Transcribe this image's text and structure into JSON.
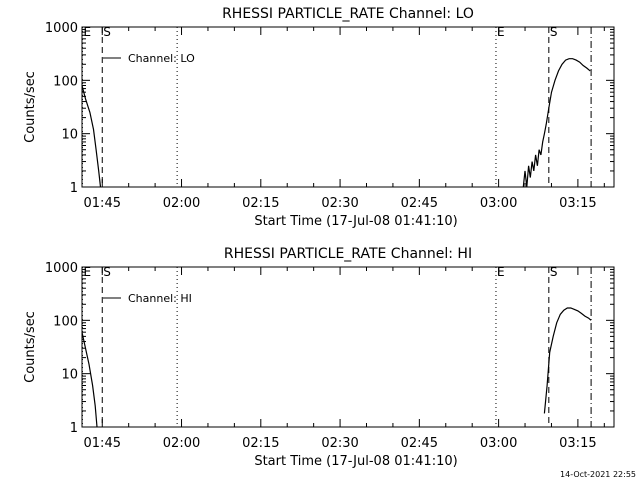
{
  "footer_timestamp": "14-Oct-2021 22:55",
  "time_axis": {
    "ticks": [
      "01:45",
      "02:00",
      "02:15",
      "02:30",
      "02:45",
      "03:00",
      "03:15"
    ],
    "xlim": [
      "01:41:10",
      "03:21:50"
    ]
  },
  "chart_data": [
    {
      "type": "line",
      "title": "RHESSI PARTICLE_RATE Channel: LO",
      "xlabel": "Start Time (17-Jul-08 01:41:10)",
      "ylabel": "Counts/sec",
      "yscale": "log",
      "ylim": [
        1,
        1000
      ],
      "yticks": [
        "1",
        "10",
        "100",
        "1000"
      ],
      "legend": {
        "label": "Channel: LO",
        "placement": "top-left"
      },
      "markers": [
        {
          "label": "E",
          "time": "01:41:15",
          "style": "dotted"
        },
        {
          "label": "S",
          "time": "01:45:00",
          "style": "dashed"
        },
        {
          "label": "",
          "time": "01:59:10",
          "style": "dotted"
        },
        {
          "label": "E",
          "time": "02:59:30",
          "style": "dotted"
        },
        {
          "label": "S",
          "time": "03:09:30",
          "style": "dashed"
        },
        {
          "label": "",
          "time": "03:17:30",
          "style": "dash-dot"
        }
      ],
      "series": [
        {
          "name": "Channel: LO",
          "segments": [
            [
              {
                "x": "01:41:10",
                "y": 80
              },
              {
                "x": "01:41:50",
                "y": 45
              },
              {
                "x": "01:42:40",
                "y": 25
              },
              {
                "x": "01:43:20",
                "y": 12
              },
              {
                "x": "01:43:50",
                "y": 5
              },
              {
                "x": "01:44:20",
                "y": 2
              },
              {
                "x": "01:44:40",
                "y": 1
              }
            ],
            [
              {
                "x": "03:04:40",
                "y": 1
              },
              {
                "x": "03:05:00",
                "y": 2
              },
              {
                "x": "03:05:20",
                "y": 1
              },
              {
                "x": "03:05:40",
                "y": 2.5
              },
              {
                "x": "03:06:00",
                "y": 1.5
              },
              {
                "x": "03:06:20",
                "y": 3
              },
              {
                "x": "03:06:40",
                "y": 2
              },
              {
                "x": "03:07:00",
                "y": 4
              },
              {
                "x": "03:07:20",
                "y": 2.5
              },
              {
                "x": "03:07:40",
                "y": 5
              },
              {
                "x": "03:08:00",
                "y": 4
              },
              {
                "x": "03:08:20",
                "y": 7
              },
              {
                "x": "03:08:40",
                "y": 10
              },
              {
                "x": "03:09:00",
                "y": 15
              },
              {
                "x": "03:09:30",
                "y": 30
              },
              {
                "x": "03:10:00",
                "y": 60
              },
              {
                "x": "03:10:40",
                "y": 100
              },
              {
                "x": "03:11:20",
                "y": 150
              },
              {
                "x": "03:12:00",
                "y": 200
              },
              {
                "x": "03:12:40",
                "y": 240
              },
              {
                "x": "03:13:20",
                "y": 255
              },
              {
                "x": "03:14:00",
                "y": 255
              },
              {
                "x": "03:14:40",
                "y": 240
              },
              {
                "x": "03:15:20",
                "y": 220
              },
              {
                "x": "03:16:00",
                "y": 190
              },
              {
                "x": "03:16:40",
                "y": 170
              },
              {
                "x": "03:17:20",
                "y": 150
              }
            ]
          ]
        }
      ]
    },
    {
      "type": "line",
      "title": "RHESSI PARTICLE_RATE Channel: HI",
      "xlabel": "Start Time (17-Jul-08 01:41:10)",
      "ylabel": "Counts/sec",
      "yscale": "log",
      "ylim": [
        1,
        1000
      ],
      "yticks": [
        "1",
        "10",
        "100",
        "1000"
      ],
      "legend": {
        "label": "Channel: HI",
        "placement": "top-left"
      },
      "markers": [
        {
          "label": "E",
          "time": "01:41:15",
          "style": "dotted"
        },
        {
          "label": "S",
          "time": "01:45:00",
          "style": "dashed"
        },
        {
          "label": "",
          "time": "01:59:10",
          "style": "dotted"
        },
        {
          "label": "E",
          "time": "02:59:30",
          "style": "dotted"
        },
        {
          "label": "S",
          "time": "03:09:30",
          "style": "dashed"
        },
        {
          "label": "",
          "time": "03:17:30",
          "style": "dash-dot"
        }
      ],
      "series": [
        {
          "name": "Channel: HI",
          "segments": [
            [
              {
                "x": "01:41:10",
                "y": 60
              },
              {
                "x": "01:41:50",
                "y": 30
              },
              {
                "x": "01:42:30",
                "y": 15
              },
              {
                "x": "01:43:10",
                "y": 6
              },
              {
                "x": "01:43:40",
                "y": 2.5
              },
              {
                "x": "01:44:00",
                "y": 1
              }
            ],
            [
              {
                "x": "03:08:40",
                "y": 1.8
              },
              {
                "x": "03:09:10",
                "y": 6
              },
              {
                "x": "03:09:40",
                "y": 25
              },
              {
                "x": "03:10:20",
                "y": 50
              },
              {
                "x": "03:11:00",
                "y": 90
              },
              {
                "x": "03:11:40",
                "y": 130
              },
              {
                "x": "03:12:20",
                "y": 155
              },
              {
                "x": "03:13:00",
                "y": 170
              },
              {
                "x": "03:13:40",
                "y": 170
              },
              {
                "x": "03:14:20",
                "y": 160
              },
              {
                "x": "03:15:00",
                "y": 150
              },
              {
                "x": "03:15:40",
                "y": 135
              },
              {
                "x": "03:16:20",
                "y": 120
              },
              {
                "x": "03:17:00",
                "y": 110
              },
              {
                "x": "03:17:30",
                "y": 100
              }
            ]
          ]
        }
      ]
    }
  ]
}
